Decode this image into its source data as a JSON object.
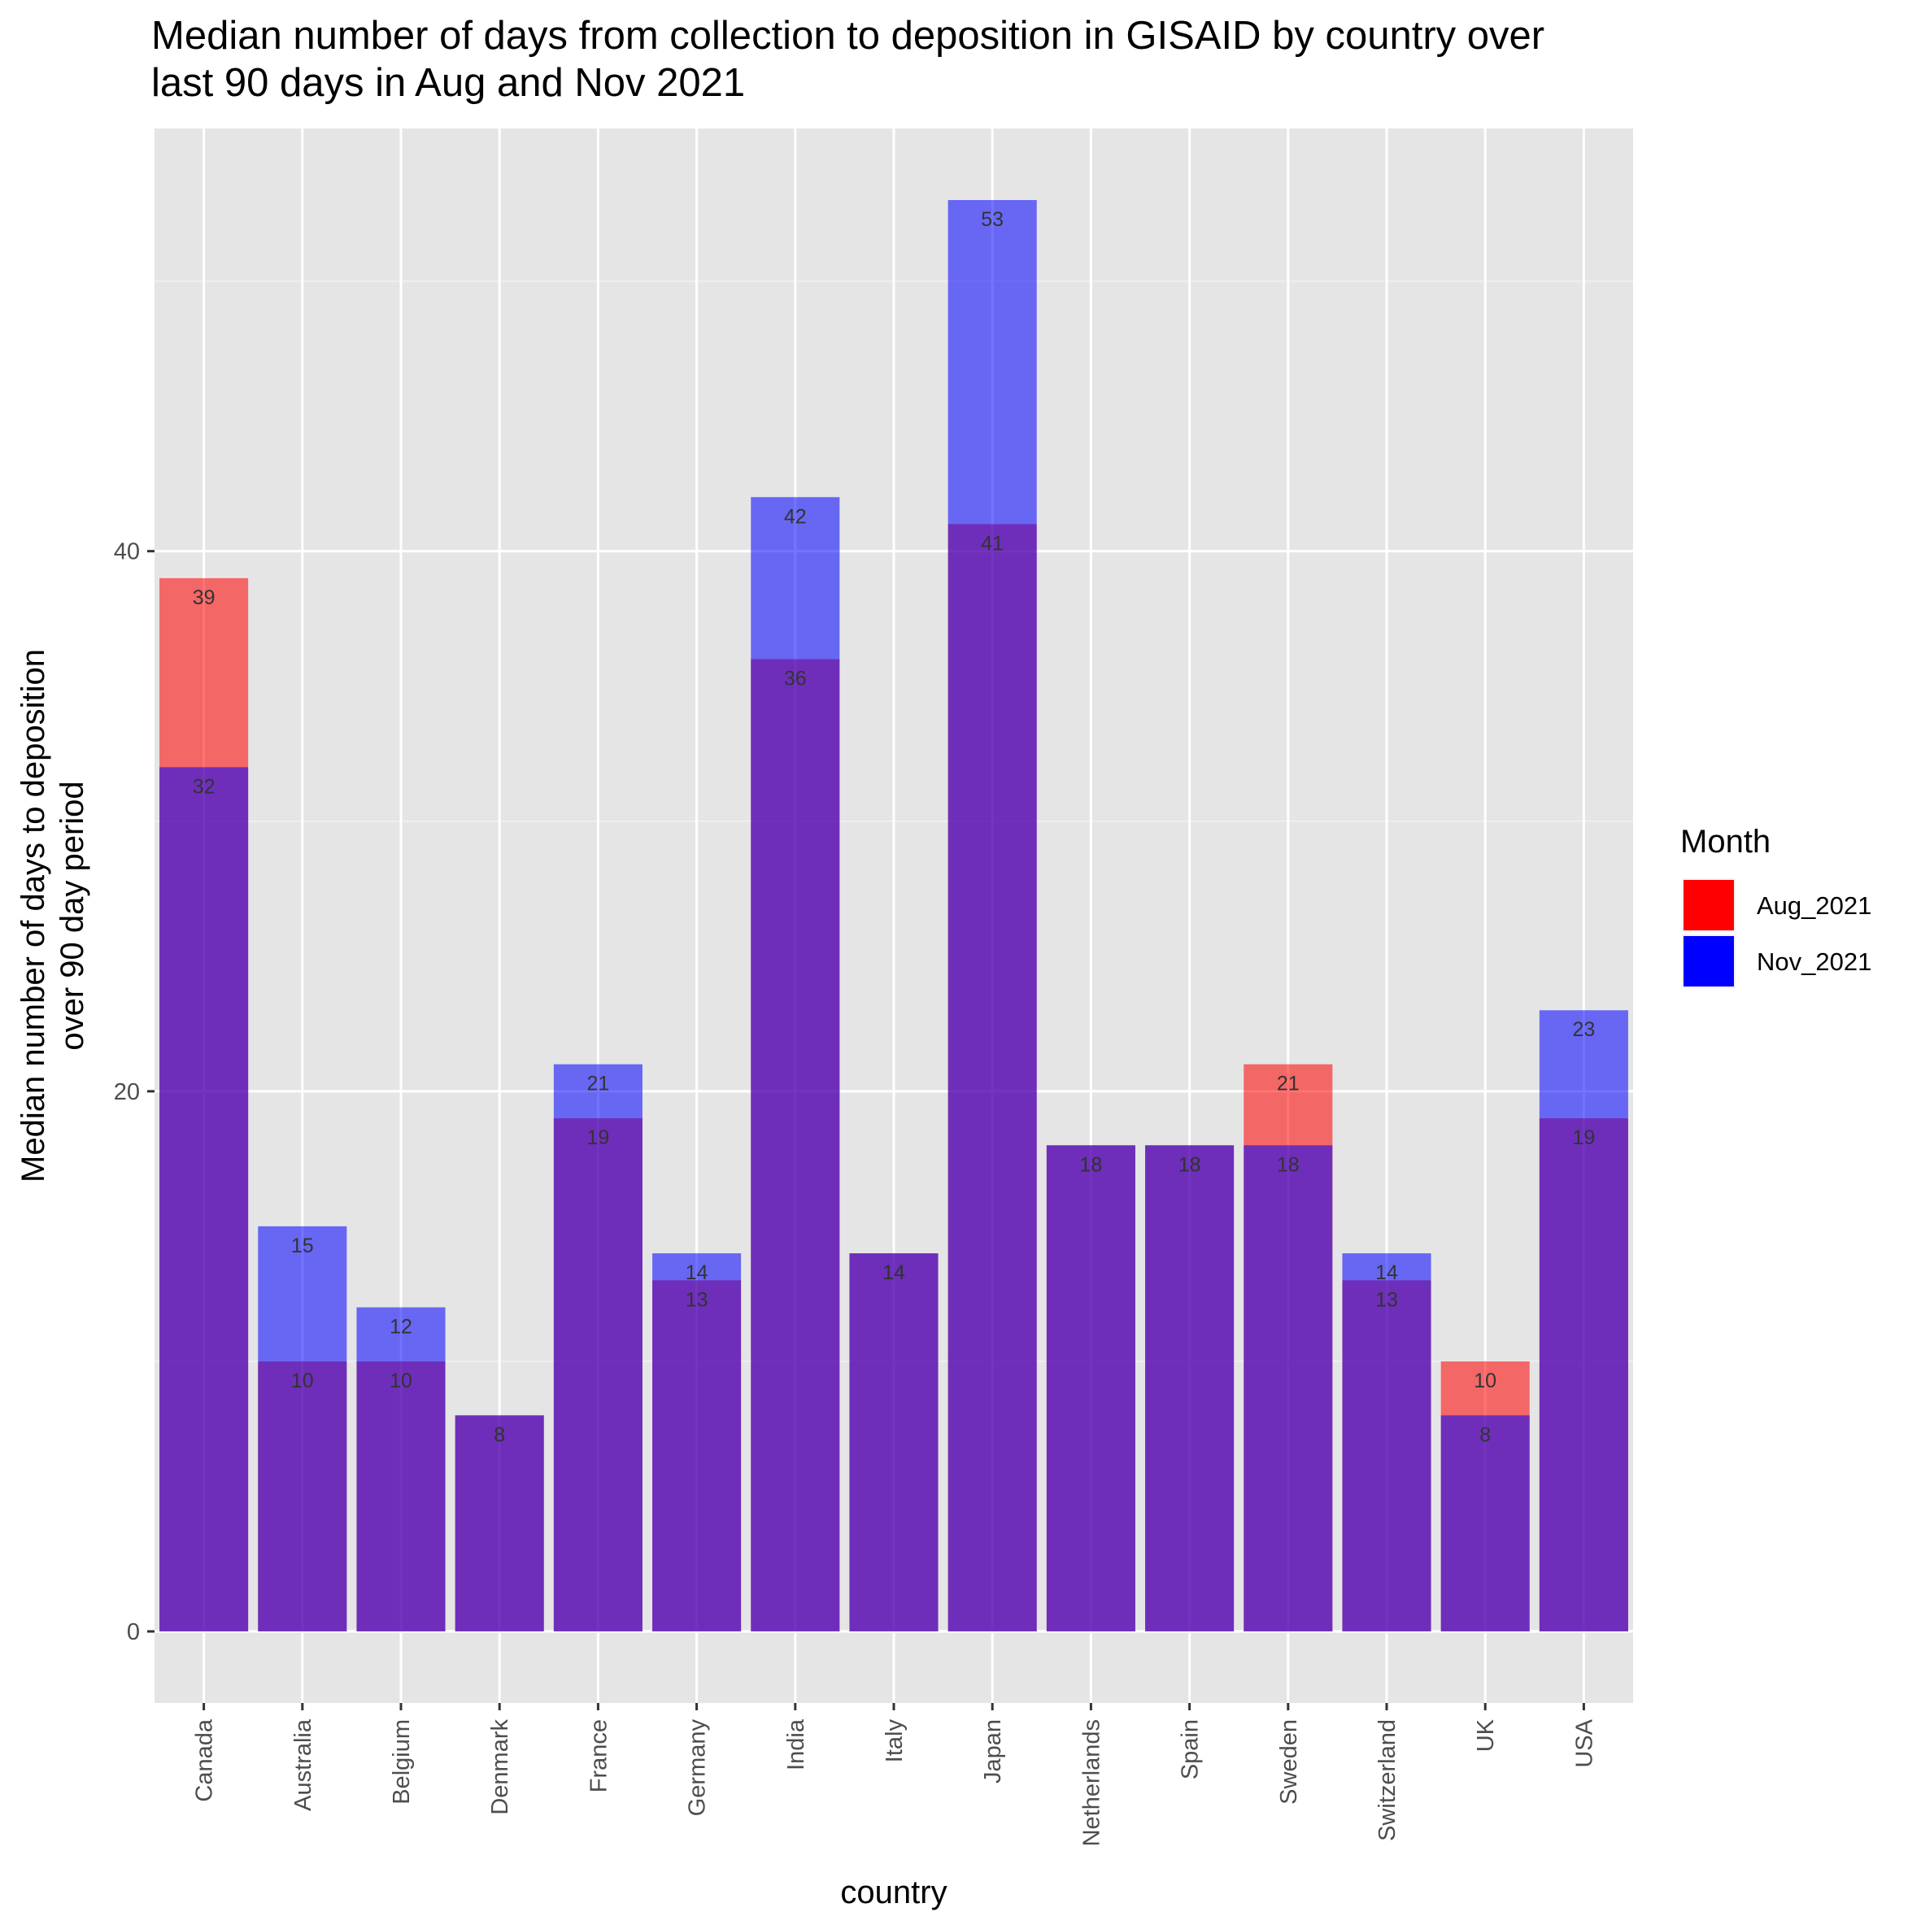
{
  "chart_data": {
    "type": "bar",
    "title_lines": [
      "Median number of days from collection to deposition in GISAID by country over",
      "last 90 days in Aug and Nov 2021"
    ],
    "xlabel": "country",
    "ylabel_lines": [
      "Median number of days to deposition",
      "over 90 day period"
    ],
    "categories": [
      "Canada",
      "Australia",
      "Belgium",
      "Denmark",
      "France",
      "Germany",
      "India",
      "Italy",
      "Japan",
      "Netherlands",
      "Spain",
      "Sweden",
      "Switzerland",
      "UK",
      "USA"
    ],
    "series": [
      {
        "name": "Aug_2021",
        "color": "#ff0000",
        "values": [
          39,
          10,
          10,
          8,
          19,
          13,
          36,
          14,
          41,
          18,
          18,
          21,
          13,
          10,
          19
        ]
      },
      {
        "name": "Nov_2021",
        "color": "#0000ff",
        "values": [
          32,
          15,
          12,
          8,
          21,
          14,
          42,
          14,
          53,
          18,
          18,
          18,
          14,
          8,
          23
        ]
      }
    ],
    "y_ticks": [
      0,
      20,
      40
    ],
    "ylim": [
      -2.65,
      55.65
    ],
    "bar_opacity": 0.55,
    "grid": true,
    "panel_background": "#e5e5e5",
    "legend": {
      "title": "Month",
      "position": "right"
    }
  }
}
